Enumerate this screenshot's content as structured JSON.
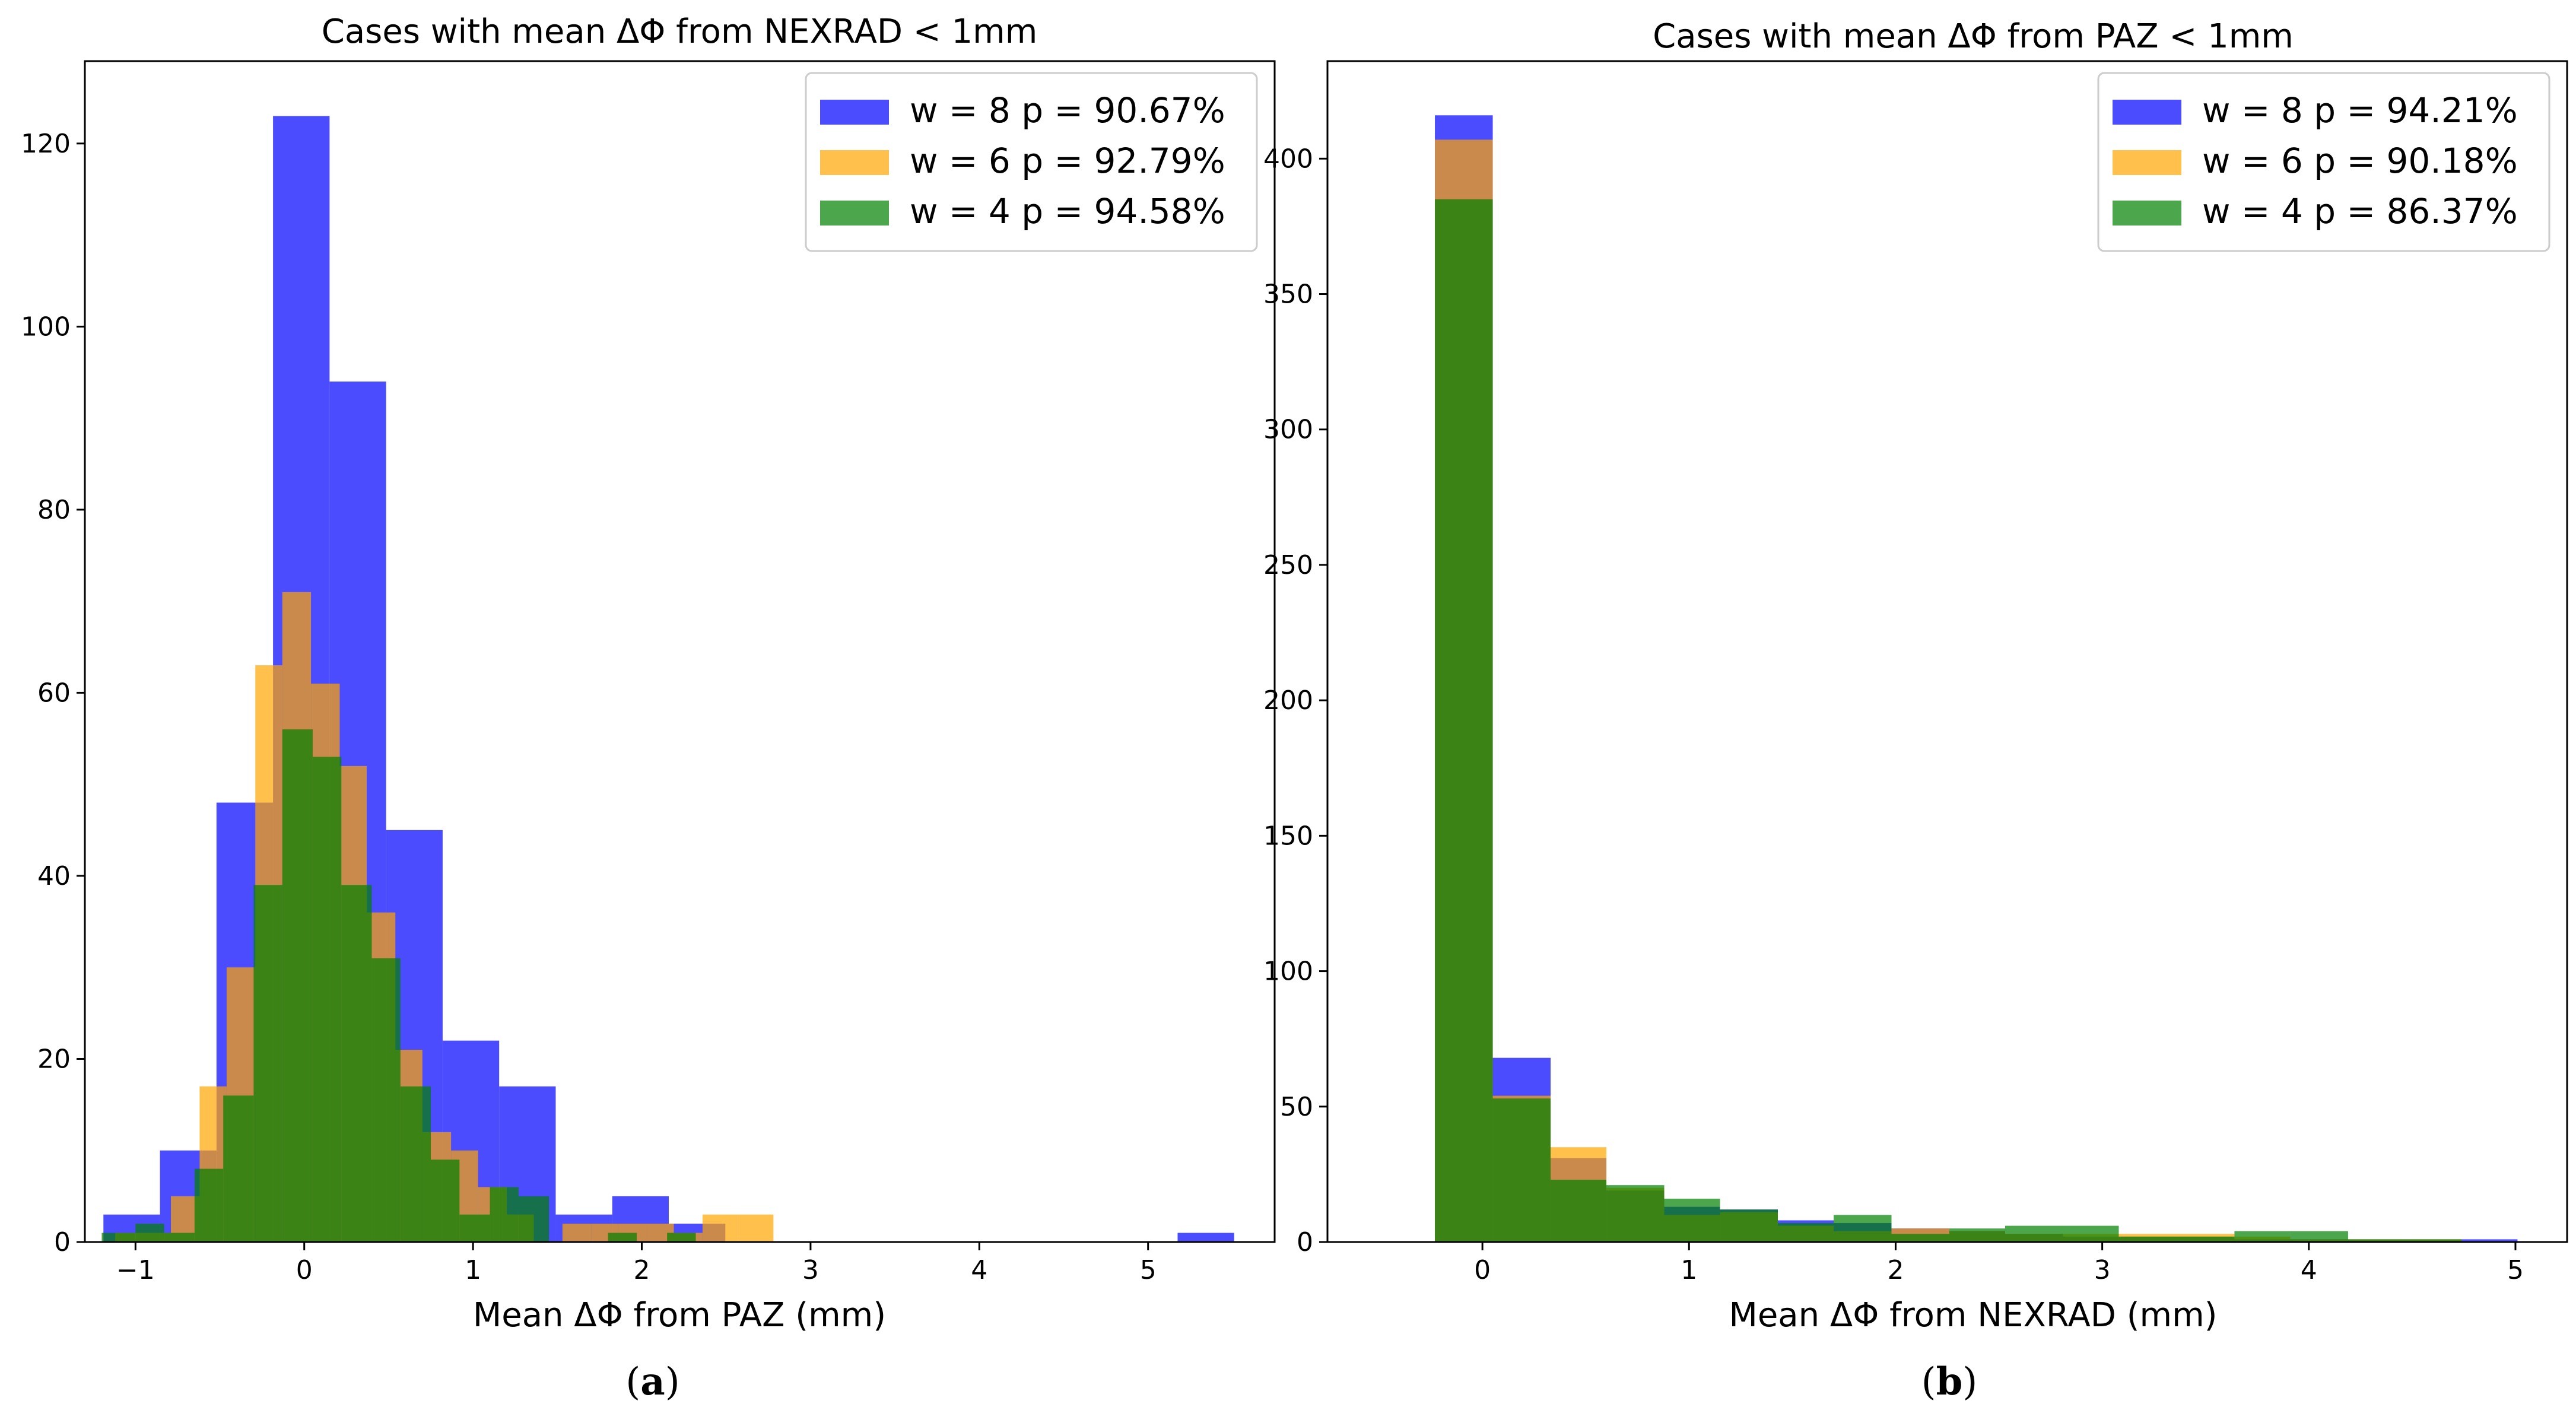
{
  "colors": {
    "w8": "#0000ff",
    "w6": "#ffa500",
    "w4": "#008000",
    "axis": "#000000"
  },
  "chart_data": [
    {
      "type": "histogram",
      "panel": "a",
      "caption_letter": "a",
      "title": "Cases with mean ΔΦ from NEXRAD < 1mm",
      "xlabel": "Mean ΔΦ from PAZ (mm)",
      "ylabel": "",
      "xlim": [
        -1.3,
        5.75
      ],
      "ylim": [
        0,
        129
      ],
      "xticks": [
        {
          "value": -1,
          "label": "−1"
        },
        {
          "value": 0,
          "label": "0"
        },
        {
          "value": 1,
          "label": "1"
        },
        {
          "value": 2,
          "label": "2"
        },
        {
          "value": 3,
          "label": "3"
        },
        {
          "value": 4,
          "label": "4"
        },
        {
          "value": 5,
          "label": "5"
        }
      ],
      "yticks": [
        {
          "value": 0,
          "label": "0"
        },
        {
          "value": 20,
          "label": "20"
        },
        {
          "value": 40,
          "label": "40"
        },
        {
          "value": 60,
          "label": "60"
        },
        {
          "value": 80,
          "label": "80"
        },
        {
          "value": 100,
          "label": "100"
        },
        {
          "value": 120,
          "label": "120"
        }
      ],
      "legend_position": "top-right",
      "series": [
        {
          "name": "w = 8",
          "legend_label": "w = 8  p = 90.67%",
          "color_key": "w8",
          "alpha": 0.7,
          "bin_edges": [
            -1.19,
            -0.855,
            -0.52,
            -0.185,
            0.15,
            0.485,
            0.82,
            1.155,
            1.49,
            1.825,
            2.16,
            2.495,
            2.83,
            3.165,
            3.5,
            3.835,
            4.17,
            4.505,
            4.84,
            5.175,
            5.51
          ],
          "counts": [
            3,
            10,
            48,
            123,
            94,
            45,
            22,
            17,
            3,
            5,
            2,
            0,
            0,
            0,
            0,
            0,
            0,
            0,
            0,
            1
          ]
        },
        {
          "name": "w = 6",
          "legend_label": "w = 6  p = 92.79%",
          "color_key": "w6",
          "alpha": 0.7,
          "bin_edges": [
            -1.12,
            -0.95,
            -0.79,
            -0.62,
            -0.46,
            -0.29,
            -0.13,
            0.04,
            0.21,
            0.37,
            0.54,
            0.7,
            0.87,
            1.03,
            1.2,
            1.36,
            1.53,
            1.7,
            1.86,
            2.03,
            2.19,
            2.36,
            2.57,
            2.78
          ],
          "counts": [
            1,
            1,
            5,
            17,
            30,
            63,
            71,
            61,
            52,
            36,
            21,
            12,
            10,
            6,
            3,
            0,
            2,
            2,
            2,
            2,
            1,
            3,
            3
          ]
        },
        {
          "name": "w = 4",
          "legend_label": "w = 4  p = 94.58%",
          "color_key": "w4",
          "alpha": 0.7,
          "bin_edges": [
            -1.2,
            -1.0,
            -0.83,
            -0.65,
            -0.48,
            -0.3,
            -0.13,
            0.05,
            0.22,
            0.4,
            0.57,
            0.75,
            0.92,
            1.1,
            1.27,
            1.45,
            1.62,
            1.8,
            1.97,
            2.15,
            2.32
          ],
          "counts": [
            1,
            2,
            1,
            8,
            16,
            39,
            56,
            53,
            39,
            31,
            17,
            9,
            3,
            6,
            5,
            0,
            0,
            1,
            0,
            1
          ]
        }
      ]
    },
    {
      "type": "histogram",
      "panel": "b",
      "caption_letter": "b",
      "title": "Cases with mean ΔΦ from PAZ < 1mm",
      "xlabel": "Mean ΔΦ from NEXRAD (mm)",
      "ylabel": "",
      "xlim": [
        -0.75,
        5.25
      ],
      "ylim": [
        0,
        436
      ],
      "xticks": [
        {
          "value": 0,
          "label": "0"
        },
        {
          "value": 1,
          "label": "1"
        },
        {
          "value": 2,
          "label": "2"
        },
        {
          "value": 3,
          "label": "3"
        },
        {
          "value": 4,
          "label": "4"
        },
        {
          "value": 5,
          "label": "5"
        }
      ],
      "yticks": [
        {
          "value": 0,
          "label": "0"
        },
        {
          "value": 50,
          "label": "50"
        },
        {
          "value": 100,
          "label": "100"
        },
        {
          "value": 150,
          "label": "150"
        },
        {
          "value": 200,
          "label": "200"
        },
        {
          "value": 250,
          "label": "250"
        },
        {
          "value": 300,
          "label": "300"
        },
        {
          "value": 350,
          "label": "350"
        },
        {
          "value": 400,
          "label": "400"
        }
      ],
      "legend_position": "top-right",
      "series": [
        {
          "name": "w = 8",
          "legend_label": "w = 8  p = 94.21%",
          "color_key": "w8",
          "alpha": 0.7,
          "bin_edges": [
            -0.23,
            0.05,
            0.33,
            0.6,
            0.88,
            1.15,
            1.43,
            1.7,
            1.98,
            2.26,
            2.53,
            2.81,
            3.08,
            3.36,
            3.64,
            3.91,
            4.19,
            4.46,
            4.74,
            5.01
          ],
          "counts": [
            416,
            68,
            31,
            19,
            13,
            12,
            8,
            7,
            5,
            4,
            3,
            2,
            2,
            2,
            1,
            1,
            1,
            1,
            1
          ]
        },
        {
          "name": "w = 6",
          "legend_label": "w = 6  p = 90.18%",
          "color_key": "w6",
          "alpha": 0.7,
          "bin_edges": [
            -0.23,
            0.05,
            0.33,
            0.6,
            0.88,
            1.15,
            1.43,
            1.7,
            1.98,
            2.26,
            2.53,
            2.81,
            3.08,
            3.36,
            3.64,
            3.91,
            4.19,
            4.46,
            4.74,
            5.01
          ],
          "counts": [
            407,
            54,
            35,
            20,
            10,
            11,
            6,
            4,
            5,
            4,
            3,
            3,
            3,
            3,
            2,
            1,
            1,
            1,
            0
          ]
        },
        {
          "name": "w = 4",
          "legend_label": "w = 4  p = 86.37%",
          "color_key": "w4",
          "alpha": 0.7,
          "bin_edges": [
            -0.23,
            0.05,
            0.33,
            0.6,
            0.88,
            1.15,
            1.43,
            1.7,
            1.98,
            2.26,
            2.53,
            2.81,
            3.08,
            3.36,
            3.64,
            3.91,
            4.19,
            4.46,
            4.74,
            5.01
          ],
          "counts": [
            385,
            53,
            23,
            21,
            16,
            12,
            7,
            10,
            3,
            5,
            6,
            6,
            2,
            2,
            4,
            4,
            1,
            1,
            0
          ]
        }
      ]
    }
  ]
}
